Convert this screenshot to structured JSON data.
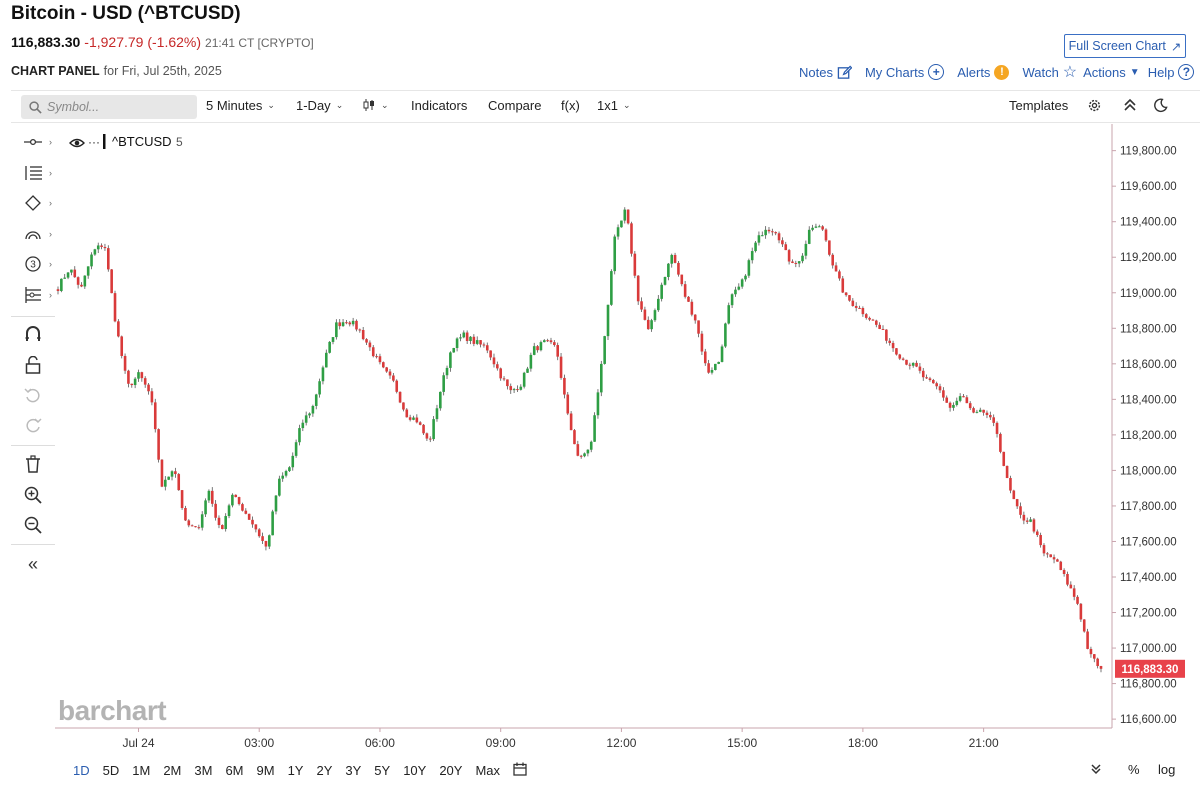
{
  "header": {
    "title": "Bitcoin - USD (^BTCUSD)",
    "last": "116,883.30",
    "change": "-1,927.79 (-1.62%)",
    "timestamp": "21:41 CT [CRYPTO]",
    "fullscreen_label": "Full Screen Chart",
    "panel_label": "CHART PANEL",
    "panel_date": "for Fri, Jul 25th, 2025"
  },
  "actions": {
    "notes": "Notes",
    "mycharts": "My Charts",
    "alerts": "Alerts",
    "alerts_badge": "!",
    "watch": "Watch",
    "actions": "Actions",
    "help": "Help"
  },
  "toolbar": {
    "search_placeholder": "Symbol...",
    "interval": "5 Minutes",
    "range": "1-Day",
    "indicators": "Indicators",
    "compare": "Compare",
    "fx": "f(x)",
    "layout": "1x1",
    "templates": "Templates"
  },
  "legend": {
    "symbol": "^BTCUSD",
    "interval": "5",
    "dots": "···"
  },
  "logo_text": "barchart",
  "bottom": {
    "ranges": [
      "1D",
      "5D",
      "1M",
      "2M",
      "3M",
      "6M",
      "9M",
      "1Y",
      "2Y",
      "3Y",
      "5Y",
      "10Y",
      "20Y",
      "Max"
    ],
    "selected": "1D",
    "percent": "%",
    "log": "log"
  },
  "colors": {
    "up": "#2e9e44",
    "down": "#d93a3a",
    "accent": "#2a5db0",
    "price_label_bg": "#e8424a",
    "axis_line": "#c9a4ad"
  },
  "icons": {
    "tools": [
      "line-tool-icon",
      "fib-tool-icon",
      "shape-tool-icon",
      "arc-tool-icon",
      "counter-tool-icon",
      "pattern-tool-icon",
      "magnet-icon",
      "lock-icon",
      "undo-icon",
      "redo-icon",
      "trash-icon",
      "zoom-in-icon",
      "zoom-out-icon",
      "collapse-icon"
    ]
  },
  "chart_data": {
    "type": "candlestick",
    "symbol": "^BTCUSD",
    "interval": "5 Minutes",
    "x_labels": [
      "Jul 24",
      "03:00",
      "06:00",
      "09:00",
      "12:00",
      "15:00",
      "18:00",
      "21:00"
    ],
    "ylim": [
      116550,
      119950
    ],
    "y_ticks": [
      119800,
      119600,
      119400,
      119200,
      119000,
      118800,
      118600,
      118400,
      118200,
      118000,
      117800,
      117600,
      117400,
      117200,
      117000,
      116800,
      116600
    ],
    "y_tick_labels": [
      "119,800.00",
      "119,600.00",
      "119,400.00",
      "119,200.00",
      "119,000.00",
      "118,800.00",
      "118,600.00",
      "118,400.00",
      "118,200.00",
      "118,000.00",
      "117,800.00",
      "117,600.00",
      "117,400.00",
      "117,200.00",
      "117,000.00",
      "116,800.00",
      "116,600.00"
    ],
    "last_price": 116883.3,
    "last_price_label": "116,883.30",
    "x_positions": [
      0,
      36,
      72,
      108,
      144,
      180,
      216,
      252,
      288,
      311
    ],
    "path": [
      119030,
      119140,
      119020,
      119230,
      119280,
      118820,
      118470,
      118540,
      118420,
      117900,
      118030,
      117700,
      117660,
      117890,
      117650,
      117860,
      117780,
      117680,
      117560,
      117930,
      118020,
      118260,
      118360,
      118620,
      118820,
      118850,
      118790,
      118680,
      118570,
      118490,
      118320,
      118280,
      118150,
      118450,
      118700,
      118760,
      118720,
      118690,
      118560,
      118440,
      118490,
      118680,
      118720,
      118690,
      118300,
      118050,
      118150,
      118650,
      119290,
      119470,
      118980,
      118770,
      119030,
      119220,
      119000,
      118850,
      118550,
      118610,
      118960,
      119050,
      119250,
      119370,
      119350,
      119190,
      119170,
      119370,
      119360,
      119130,
      118970,
      118920,
      118860,
      118790,
      118700,
      118620,
      118580,
      118500,
      118460,
      118350,
      118420,
      118310,
      118330,
      118220,
      117910,
      117740,
      117710,
      117530,
      117500,
      117380,
      117250,
      116960,
      116883
    ]
  }
}
